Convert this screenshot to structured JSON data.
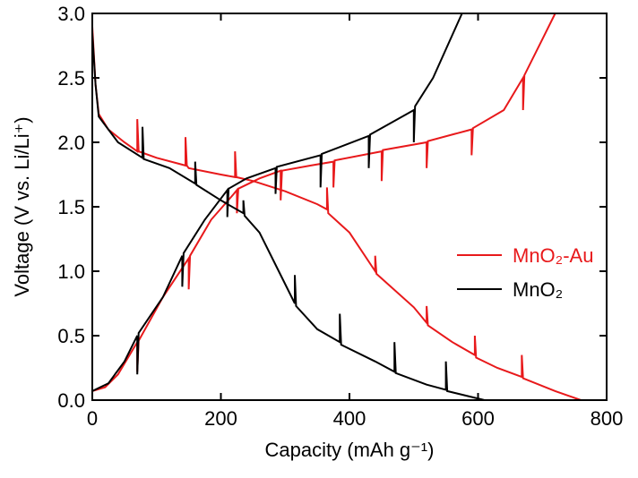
{
  "chart_data": {
    "type": "line",
    "xlabel": "Capacity (mAh g⁻¹)",
    "ylabel": "Voltage (V vs. Li/Li⁺)",
    "xlim": [
      0,
      800
    ],
    "xticks": [
      0,
      200,
      400,
      600,
      800
    ],
    "ylim": [
      0,
      3
    ],
    "yticks": [
      {
        "value": 0,
        "label": "0.0"
      },
      0.5,
      {
        "value": 1,
        "label": "1.0"
      },
      1.5,
      {
        "value": 2,
        "label": "2.0"
      },
      2.5,
      {
        "value": 3,
        "label": "3.0"
      }
    ],
    "legend": "right",
    "series": [
      {
        "name": "MnO₂-Au",
        "color": "#e8191b",
        "x": [
          0,
          5,
          10,
          25,
          50,
          70,
          70,
          72,
          100,
          145,
          145,
          147,
          150,
          200,
          222,
          222,
          224,
          250,
          300,
          350,
          365,
          365,
          367,
          400,
          440,
          440,
          442,
          500,
          520,
          520,
          522,
          560,
          595,
          595,
          597,
          630,
          668,
          668,
          670,
          720,
          760,
          null,
          0,
          20,
          40,
          70,
          70,
          72,
          110,
          150,
          150,
          152,
          185,
          220,
          225,
          225,
          227,
          260,
          293,
          293,
          295,
          340,
          375,
          375,
          377,
          450,
          450,
          452,
          520,
          520,
          522,
          590,
          590,
          592,
          640,
          670,
          670,
          672,
          700,
          720
        ],
        "values": [
          2.9,
          2.45,
          2.22,
          2.1,
          2.0,
          1.93,
          2.18,
          1.93,
          1.88,
          1.82,
          2.04,
          1.82,
          1.8,
          1.75,
          1.73,
          1.93,
          1.73,
          1.7,
          1.62,
          1.52,
          1.48,
          1.65,
          1.45,
          1.3,
          1.0,
          1.12,
          0.98,
          0.72,
          0.6,
          0.73,
          0.58,
          0.45,
          0.35,
          0.5,
          0.33,
          0.25,
          0.18,
          0.35,
          0.17,
          0.07,
          0.0,
          null,
          0.07,
          0.1,
          0.2,
          0.45,
          0.22,
          0.46,
          0.8,
          1.1,
          0.86,
          1.12,
          1.4,
          1.6,
          1.63,
          1.45,
          1.64,
          1.72,
          1.78,
          1.55,
          1.78,
          1.82,
          1.85,
          1.65,
          1.86,
          1.93,
          1.7,
          1.94,
          2.0,
          1.8,
          2.01,
          2.1,
          1.9,
          2.11,
          2.25,
          2.5,
          2.25,
          2.52,
          2.8,
          3.0
        ]
      },
      {
        "name": "MnO₂",
        "color": "#000000",
        "x": [
          0,
          5,
          10,
          40,
          78,
          78,
          80,
          120,
          160,
          160,
          162,
          200,
          235,
          235,
          237,
          260,
          290,
          315,
          315,
          317,
          350,
          385,
          385,
          387,
          440,
          470,
          470,
          472,
          520,
          550,
          550,
          552,
          610,
          null,
          0,
          25,
          50,
          70,
          70,
          72,
          110,
          140,
          140,
          142,
          175,
          210,
          210,
          212,
          240,
          285,
          285,
          287,
          355,
          355,
          357,
          430,
          430,
          432,
          500,
          500,
          502,
          530,
          575
        ],
        "values": [
          2.85,
          2.45,
          2.2,
          2.0,
          1.88,
          2.12,
          1.87,
          1.8,
          1.68,
          1.85,
          1.67,
          1.55,
          1.45,
          1.55,
          1.43,
          1.3,
          1.0,
          0.75,
          0.97,
          0.73,
          0.55,
          0.45,
          0.67,
          0.43,
          0.3,
          0.22,
          0.45,
          0.21,
          0.12,
          0.08,
          0.3,
          0.07,
          0.0,
          null,
          0.07,
          0.13,
          0.3,
          0.5,
          0.2,
          0.52,
          0.8,
          1.12,
          0.88,
          1.14,
          1.4,
          1.63,
          1.42,
          1.64,
          1.72,
          1.8,
          1.6,
          1.81,
          1.9,
          1.65,
          1.91,
          2.05,
          1.8,
          2.06,
          2.25,
          2.0,
          2.28,
          2.5,
          3.0
        ]
      }
    ]
  }
}
